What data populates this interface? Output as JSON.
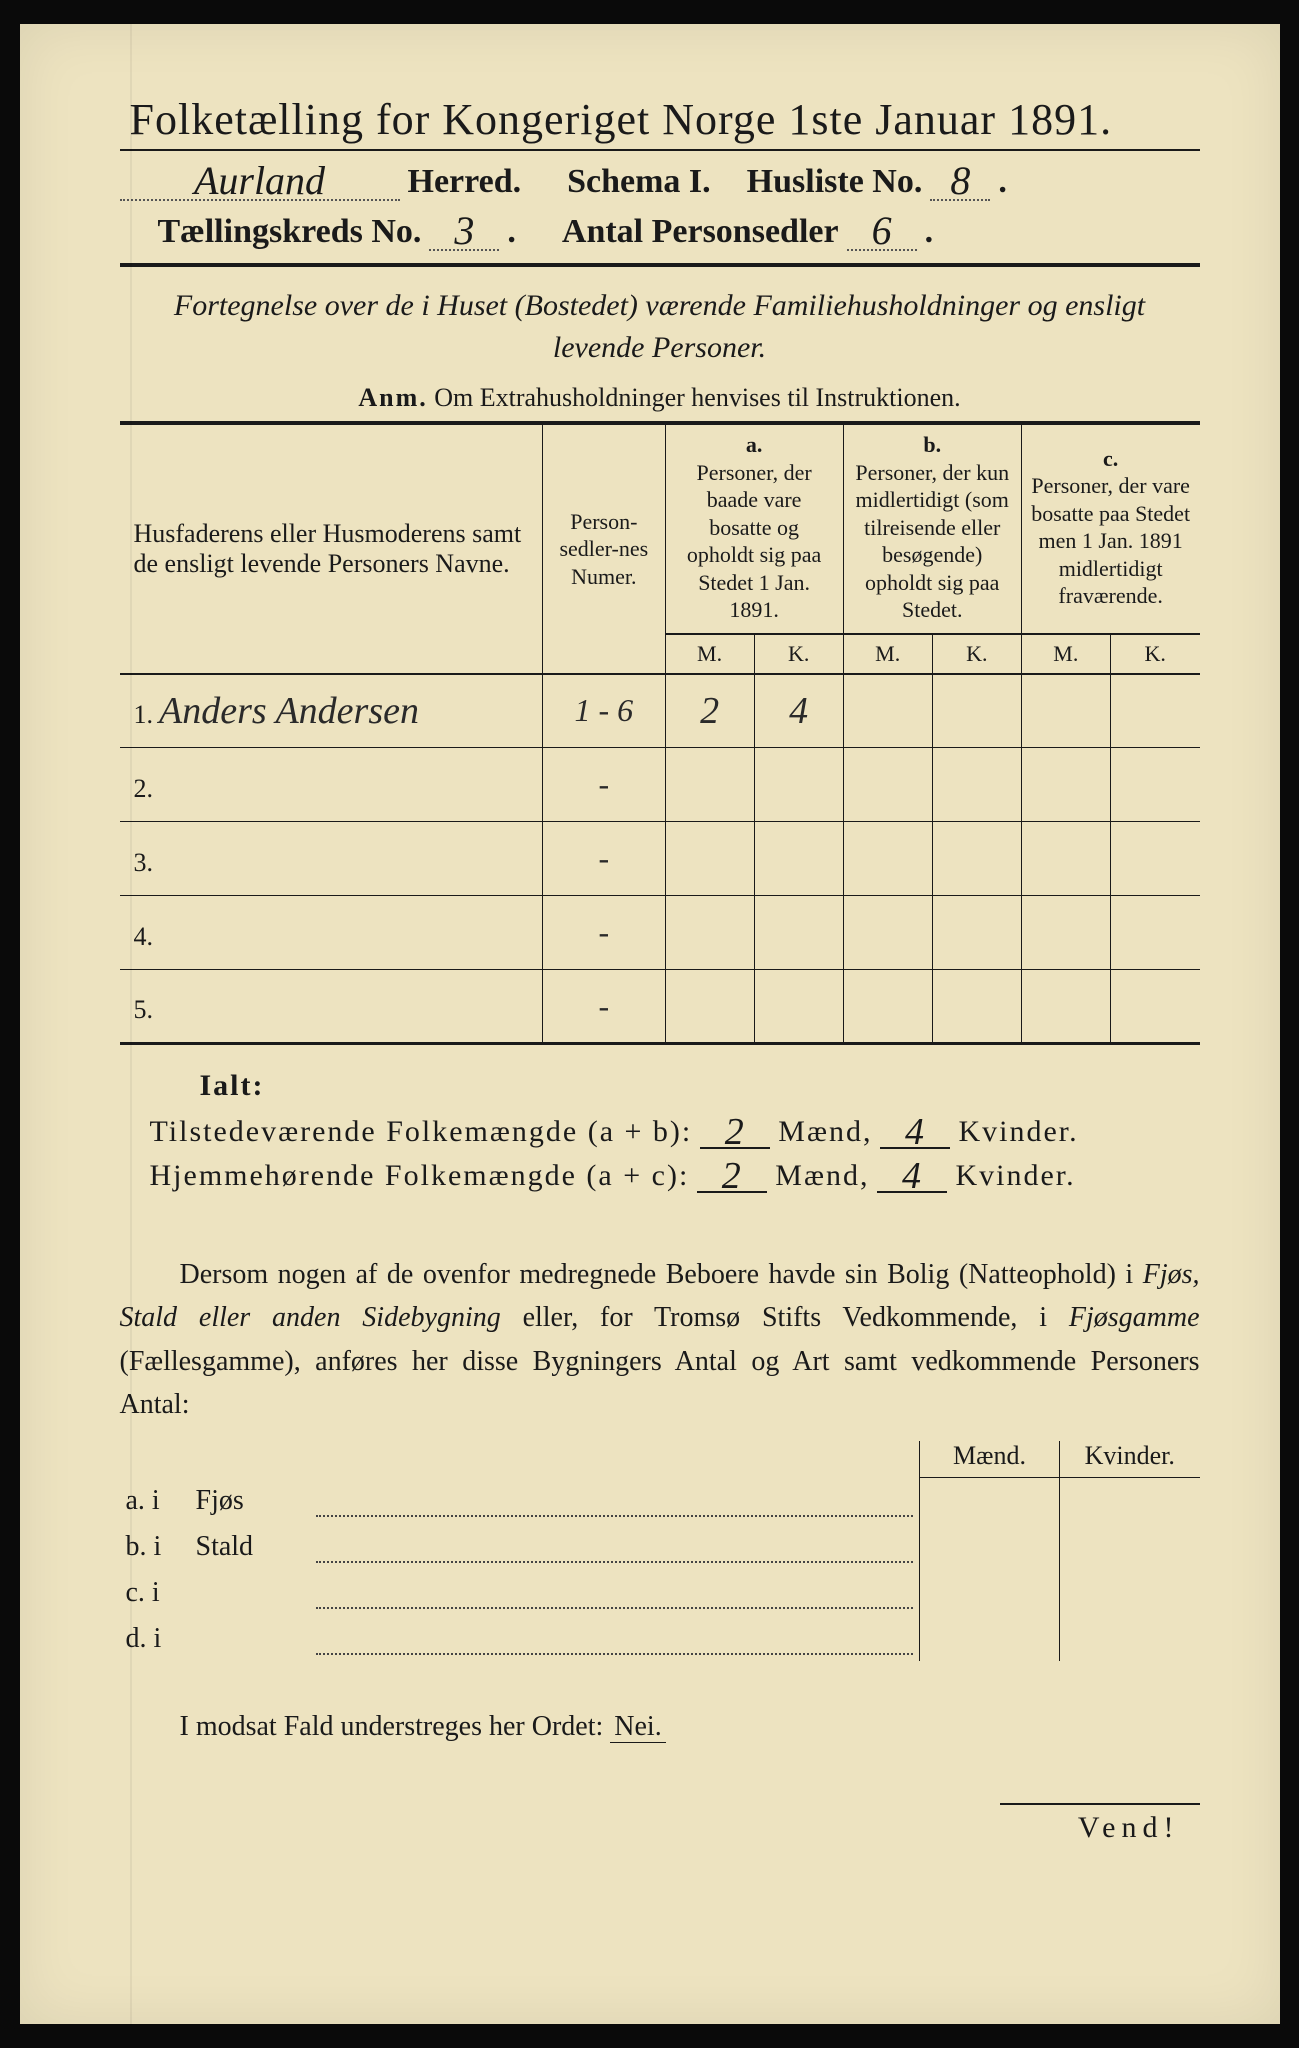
{
  "title": "Folketælling for Kongeriget Norge 1ste Januar 1891.",
  "header": {
    "herred_value": "Aurland",
    "herred_label": "Herred.",
    "schema_label": "Schema I.",
    "husliste_label": "Husliste No.",
    "husliste_value": "8",
    "kreds_label": "Tællingskreds No.",
    "kreds_value": "3",
    "antal_label": "Antal Personsedler",
    "antal_value": "6"
  },
  "subtitle": "Fortegnelse over de i Huset (Bostedet) værende Familiehusholdninger og ensligt levende Personer.",
  "anm": {
    "prefix": "Anm.",
    "text": "Om Extrahusholdninger henvises til Instruktionen."
  },
  "table": {
    "col_name": "Husfaderens eller Husmoderens samt de ensligt levende Personers Navne.",
    "col_num": "Person-sedler-nes Numer.",
    "col_a_tag": "a.",
    "col_a": "Personer, der baade vare bosatte og opholdt sig paa Stedet 1 Jan. 1891.",
    "col_b_tag": "b.",
    "col_b": "Personer, der kun midlertidigt (som tilreisende eller besøgende) opholdt sig paa Stedet.",
    "col_c_tag": "c.",
    "col_c": "Personer, der vare bosatte paa Stedet men 1 Jan. 1891 midlertidigt fraværende.",
    "m": "M.",
    "k": "K.",
    "rows": [
      {
        "n": "1.",
        "name": "Anders Andersen",
        "num": "1 - 6",
        "am": "2",
        "ak": "4",
        "bm": "",
        "bk": "",
        "cm": "",
        "ck": ""
      },
      {
        "n": "2.",
        "name": "",
        "num": "-",
        "am": "",
        "ak": "",
        "bm": "",
        "bk": "",
        "cm": "",
        "ck": ""
      },
      {
        "n": "3.",
        "name": "",
        "num": "-",
        "am": "",
        "ak": "",
        "bm": "",
        "bk": "",
        "cm": "",
        "ck": ""
      },
      {
        "n": "4.",
        "name": "",
        "num": "-",
        "am": "",
        "ak": "",
        "bm": "",
        "bk": "",
        "cm": "",
        "ck": ""
      },
      {
        "n": "5.",
        "name": "",
        "num": "-",
        "am": "",
        "ak": "",
        "bm": "",
        "bk": "",
        "cm": "",
        "ck": ""
      }
    ]
  },
  "ialt": "Ialt:",
  "sum1": {
    "label": "Tilstedeværende Folkemængde (a + b):",
    "m": "2",
    "mlabel": "Mænd,",
    "k": "4",
    "klabel": "Kvinder."
  },
  "sum2": {
    "label": "Hjemmehørende Folkemængde (a + c):",
    "m": "2",
    "mlabel": "Mænd,",
    "k": "4",
    "klabel": "Kvinder."
  },
  "para": {
    "p1": "Dersom nogen af de ovenfor medregnede Beboere havde sin Bolig (Natteophold) i ",
    "p2": "Fjøs, Stald eller anden Sidebygning",
    "p3": " eller, for Tromsø Stifts Vedkommende, i ",
    "p4": "Fjøsgamme",
    "p5": " (Fællesgamme), anføres her disse Bygningers Antal og Art samt vedkommende Personers Antal:"
  },
  "byg": {
    "mh": "Mænd.",
    "kh": "Kvinder.",
    "rows": [
      {
        "l": "a.  i",
        "t": "Fjøs"
      },
      {
        "l": "b.  i",
        "t": "Stald"
      },
      {
        "l": "c.  i",
        "t": ""
      },
      {
        "l": "d.  i",
        "t": ""
      }
    ]
  },
  "nei": {
    "pre": "I modsat Fald understreges her Ordet: ",
    "word": "Nei."
  },
  "vend": "Vend!"
}
